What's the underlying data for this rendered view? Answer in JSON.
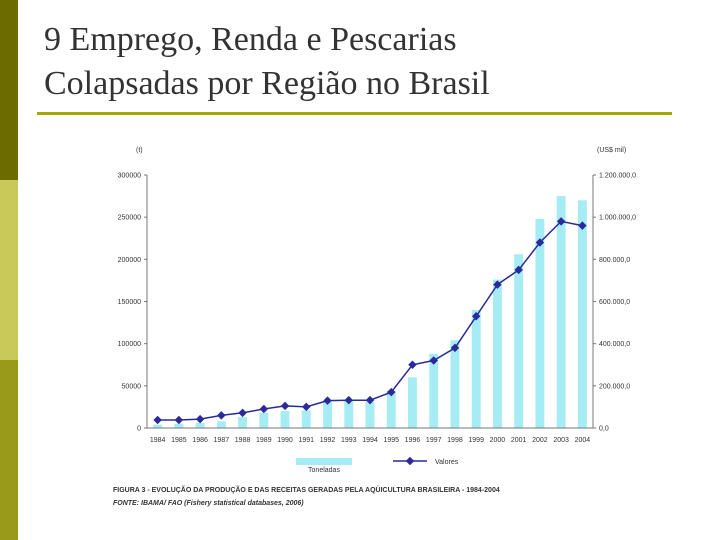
{
  "slide": {
    "title_line1": "9 Emprego, Renda e Pescarias",
    "title_line2": "Colapsadas por Região no Brasil"
  },
  "colors": {
    "bar": "#a6ecf5",
    "line": "#2a2a9a",
    "accent": "#a6a600"
  },
  "chart_data": {
    "type": "bar",
    "categories": [
      "1984",
      "1985",
      "1986",
      "1987",
      "1988",
      "1989",
      "1990",
      "1991",
      "1992",
      "1993",
      "1994",
      "1995",
      "1996",
      "1997",
      "1998",
      "1999",
      "2000",
      "2001",
      "2002",
      "2003",
      "2004"
    ],
    "series": [
      {
        "name": "Toneladas",
        "type": "bar",
        "axis": "left",
        "values": [
          4000,
          5000,
          6000,
          8000,
          13000,
          18000,
          20000,
          21000,
          31000,
          32000,
          31000,
          44000,
          60000,
          88000,
          104000,
          140000,
          176000,
          206000,
          248000,
          275000,
          270000
        ]
      },
      {
        "name": "Valores",
        "type": "line",
        "axis": "right",
        "values": [
          38000,
          38000,
          42000,
          60000,
          72000,
          90000,
          105000,
          100000,
          130000,
          132000,
          132000,
          170000,
          300000,
          320000,
          380000,
          530000,
          680000,
          750000,
          880000,
          980000,
          960000
        ]
      }
    ],
    "ylabel_left": "(t)",
    "ylabel_right": "(US$ mil)",
    "ylim_left": [
      0,
      300000
    ],
    "ylim_right": [
      0,
      1200000
    ],
    "left_ticks": [
      "0",
      "50000",
      "100000",
      "150000",
      "200000",
      "250000",
      "300000"
    ],
    "right_ticks": [
      "0,0",
      "200.000,0",
      "400.000,0",
      "600.000,0",
      "800.000,0",
      "1.000.000,0",
      "1.200.000,0"
    ],
    "legend_position": "bottom",
    "grid": false,
    "caption_line1": "FIGURA 3 - EVOLUÇÃO DA PRODUÇÃO E DAS RECEITAS GERADAS PELA AQÜICULTURA BRASILEIRA - 1984-2004",
    "caption_line2": "FONTE: IBAMA/ FAO (Fishery statistical databases, 2006)"
  }
}
